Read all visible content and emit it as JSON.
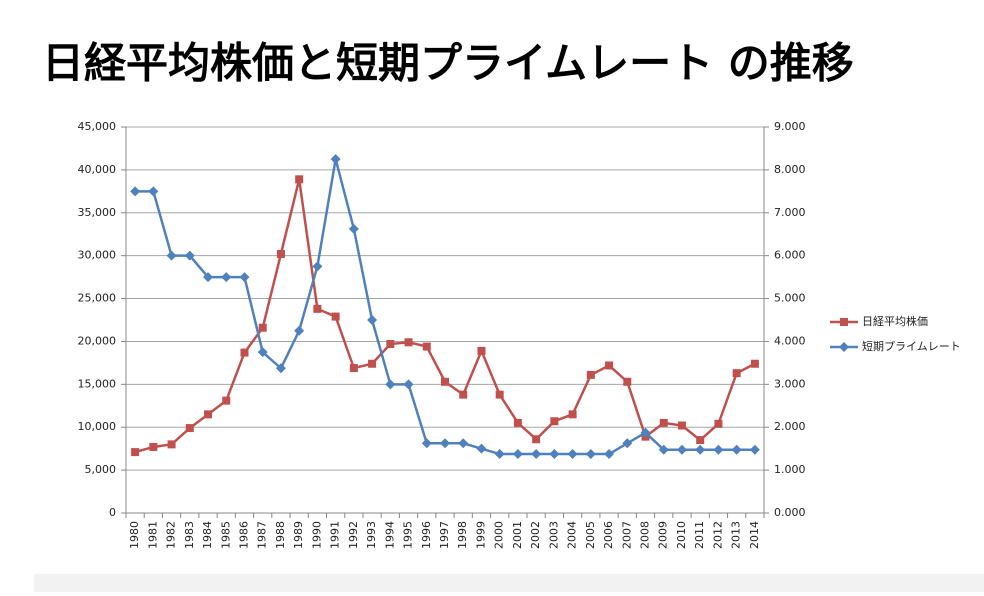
{
  "chart_data": {
    "type": "line",
    "title": "日経平均株価と短期プライムレート の推移",
    "categories": [
      "1980",
      "1981",
      "1982",
      "1983",
      "1984",
      "1985",
      "1986",
      "1987",
      "1988",
      "1989",
      "1990",
      "1991",
      "1992",
      "1993",
      "1994",
      "1995",
      "1996",
      "1997",
      "1998",
      "1999",
      "2000",
      "2001",
      "2002",
      "2003",
      "2004",
      "2005",
      "2006",
      "2007",
      "2008",
      "2009",
      "2010",
      "2011",
      "2012",
      "2013",
      "2014"
    ],
    "series": [
      {
        "name": "日経平均株価",
        "color": "#c0504d",
        "marker": "square",
        "values": [
          7100,
          7700,
          8000,
          9900,
          11500,
          13100,
          18700,
          21600,
          30200,
          38900,
          23800,
          22900,
          16900,
          17400,
          19700,
          19900,
          19400,
          15300,
          13800,
          18900,
          13800,
          10500,
          8600,
          10700,
          11500,
          16100,
          17200,
          15300,
          8900,
          10500,
          10200,
          8500,
          10400,
          16300,
          17400
        ]
      },
      {
        "name": "短期プライムレート",
        "color": "#4f81bd",
        "marker": "diamond",
        "axis": "y2",
        "values": [
          7.5,
          7.5,
          6.0,
          6.0,
          5.5,
          5.5,
          5.5,
          3.75,
          3.375,
          4.25,
          5.75,
          8.25,
          6.625,
          4.5,
          3.0,
          3.0,
          1.625,
          1.625,
          1.625,
          1.5,
          1.375,
          1.375,
          1.375,
          1.375,
          1.375,
          1.375,
          1.375,
          1.625,
          1.875,
          1.475,
          1.475,
          1.475,
          1.475,
          1.475,
          1.475
        ]
      }
    ],
    "ylim": [
      0,
      45000
    ],
    "yticks": [
      0,
      {
        "value": 5000,
        "label": "5,000"
      },
      {
        "value": 10000,
        "label": "10,000"
      },
      {
        "value": 15000,
        "label": "15,000"
      },
      {
        "value": 20000,
        "label": "20,000"
      },
      {
        "value": 25000,
        "label": "25,000"
      },
      {
        "value": 30000,
        "label": "30,000"
      },
      {
        "value": 35000,
        "label": "35,000"
      },
      {
        "value": 40000,
        "label": "40,000"
      },
      {
        "value": 45000,
        "label": "45,000"
      }
    ],
    "y2lim": [
      0,
      9
    ],
    "y2ticks": [
      {
        "value": 0,
        "label": "0.000"
      },
      {
        "value": 1,
        "label": "1.000"
      },
      {
        "value": 2,
        "label": "2.000"
      },
      {
        "value": 3,
        "label": "3.000"
      },
      {
        "value": 4,
        "label": "4.000"
      },
      {
        "value": 5,
        "label": "5.000"
      },
      {
        "value": 6,
        "label": "6.000"
      },
      {
        "value": 7,
        "label": "7.000"
      },
      {
        "value": 8,
        "label": "8.000"
      },
      {
        "value": 9,
        "label": "9.000"
      }
    ],
    "grid": true,
    "legend": "right"
  }
}
